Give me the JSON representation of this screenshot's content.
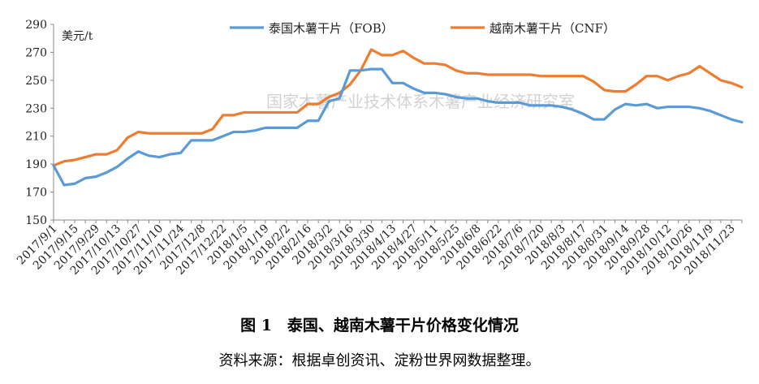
{
  "chart_data": {
    "type": "line",
    "unit_label": "美元/t",
    "ylim": [
      150,
      290
    ],
    "yticks": [
      150,
      170,
      190,
      210,
      230,
      250,
      270,
      290
    ],
    "x_tick_labels": [
      "2017/9/1",
      "2017/9/15",
      "2017/9/29",
      "2017/10/13",
      "2017/10/27",
      "2017/11/10",
      "2017/11/24",
      "2017/12/8",
      "2017/12/22",
      "2018/1/5",
      "2018/1/19",
      "2018/2/2",
      "2018/2/16",
      "2018/3/2",
      "2018/3/16",
      "2018/3/30",
      "2018/4/13",
      "2018/4/27",
      "2018/5/11",
      "2018/5/25",
      "2018/6/8",
      "2018/6/22",
      "2018/7/6",
      "2018/7/20",
      "2018/8/3",
      "2018/8/17",
      "2018/8/31",
      "2018/9/14",
      "2018/9/28",
      "2018/10/12",
      "2018/10/26",
      "2018/11/9",
      "2018/11/23"
    ],
    "x_points_per_tick": 2,
    "legend_position": "top",
    "grid": false,
    "series": [
      {
        "name": "泰国木薯干片（FOB）",
        "color": "#5b9bd5",
        "values": [
          189,
          175,
          176,
          180,
          181,
          184,
          188,
          194,
          199,
          196,
          195,
          197,
          198,
          207,
          207,
          207,
          210,
          213,
          213,
          214,
          216,
          216,
          216,
          216,
          221,
          221,
          235,
          237,
          257,
          257,
          258,
          258,
          248,
          248,
          244,
          241,
          241,
          240,
          238,
          237,
          237,
          235,
          234,
          234,
          234,
          232,
          232,
          232,
          231,
          229,
          226,
          222,
          222,
          229,
          233,
          232,
          233,
          230,
          231,
          231,
          231,
          230,
          228,
          225,
          222,
          220
        ],
        "last_point": 220
      },
      {
        "name": "越南木薯干片（CNF）",
        "color": "#ed7d31",
        "values": [
          189,
          192,
          193,
          195,
          197,
          197,
          200,
          209,
          213,
          212,
          212,
          212,
          212,
          212,
          212,
          215,
          225,
          225,
          227,
          227,
          227,
          227,
          227,
          227,
          233,
          233,
          238,
          241,
          247,
          257,
          272,
          268,
          268,
          271,
          266,
          262,
          262,
          261,
          257,
          255,
          255,
          254,
          254,
          254,
          254,
          254,
          253,
          253,
          253,
          253,
          253,
          249,
          243,
          242,
          242,
          247,
          253,
          253,
          250,
          253,
          255,
          260,
          255,
          250,
          248,
          245
        ],
        "last_point": 245
      }
    ]
  },
  "watermark": "国家木薯产业技术体系木薯产业经济研究室",
  "caption": "图 1　泰国、越南木薯干片价格变化情况",
  "source": "资料来源：根据卓创资讯、淀粉世界网数据整理。"
}
